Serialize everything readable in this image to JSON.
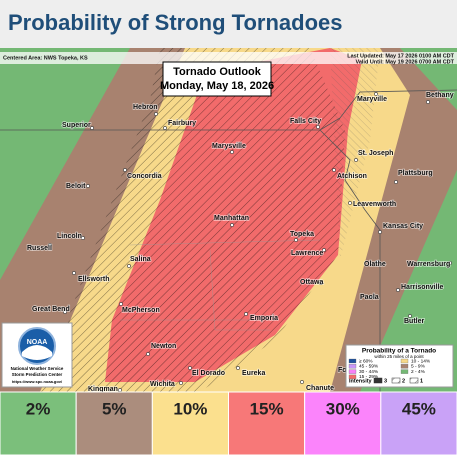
{
  "header": {
    "title": "Probability of Strong Tornadoes"
  },
  "info": {
    "centered": "Centered Area: NWS Topeka, KS",
    "updated": "Last Updated: May 17 2026 0100 AM CDT",
    "valid": "Valid Until: May 19 2026 0700 AM CDT"
  },
  "outlook": {
    "title": "Tornado Outlook",
    "date": "Monday, May 18, 2026"
  },
  "cities": [
    "Hebron",
    "Fairbury",
    "Superior",
    "Falls City",
    "Maryville",
    "Bethany",
    "St. Joseph",
    "Marysville",
    "Concordia",
    "Beloit",
    "Atchison",
    "Plattsburg",
    "Leavenworth",
    "Manhattan",
    "Topeka",
    "Kansas City",
    "Lincoln",
    "Russell",
    "Lawrence",
    "Salina",
    "Olathe",
    "Warrensburg",
    "Ottawa",
    "Ellsworth",
    "Harrisonville",
    "Paola",
    "McPherson",
    "Emporia",
    "Great Bend",
    "Butler",
    "Newton",
    "El Dorado",
    "Eureka",
    "Chanute",
    "Wichita",
    "Kingman",
    "Fo"
  ],
  "noaa": {
    "logo": "NOAA",
    "line1": "National Weather Service",
    "line2": "Storm Prediction Center",
    "url": "https://www.spc.noaa.gov/"
  },
  "legend": {
    "title": "Probability of a Tornado",
    "subtitle": "within 25 miles of a point",
    "items": [
      {
        "label": "≥ 60%",
        "color": "#1c4f9c"
      },
      {
        "label": "45 - 59%",
        "color": "#c896f7"
      },
      {
        "label": "30 - 44%",
        "color": "#f780f7"
      },
      {
        "label": "15 - 29%",
        "color": "#f26b6b"
      },
      {
        "label": "10 - 14%",
        "color": "#f7d98a"
      },
      {
        "label": "5 - 9%",
        "color": "#a8826f"
      },
      {
        "label": "2 - 4%",
        "color": "#74b874"
      }
    ],
    "intensity": "Intensity",
    "levels": [
      "3",
      "2",
      "1"
    ]
  },
  "scale": [
    {
      "label": "2%",
      "color": "#7bbf7b"
    },
    {
      "label": "5%",
      "color": "#ab8d7d"
    },
    {
      "label": "10%",
      "color": "#fbe08e"
    },
    {
      "label": "15%",
      "color": "#f77878"
    },
    {
      "label": "30%",
      "color": "#fb84fb"
    },
    {
      "label": "45%",
      "color": "#c9a2f7"
    }
  ]
}
